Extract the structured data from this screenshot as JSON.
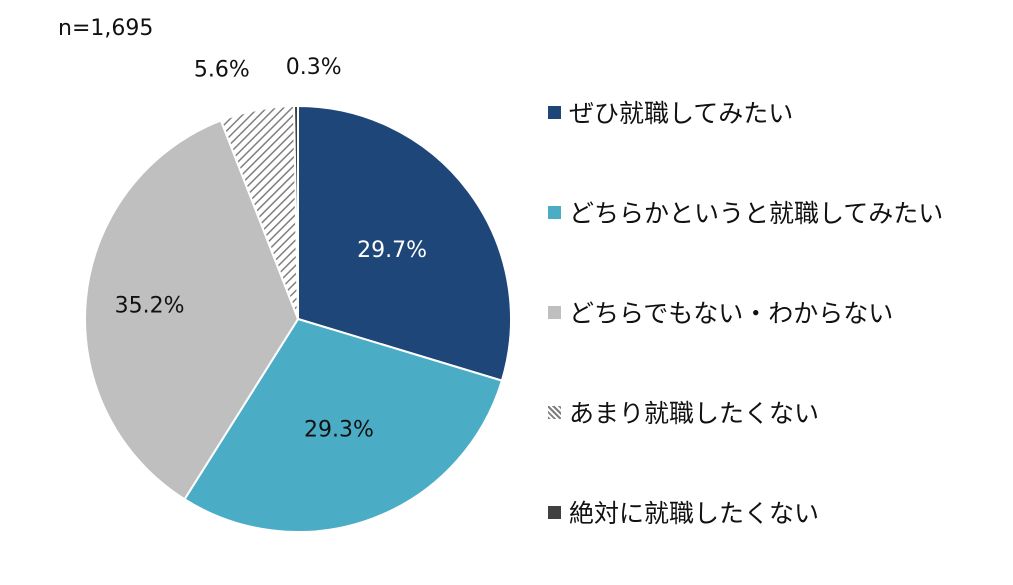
{
  "sample_size_label": "n=1,695",
  "chart_data": {
    "type": "pie",
    "title": "",
    "sample_size": "n=1,695",
    "legend_position": "right",
    "slices": [
      {
        "label": "ぜひ就職してみたい",
        "value": 29.7,
        "value_label": "29.7%",
        "color": "#1f4679",
        "pattern": "solid"
      },
      {
        "label": "どちらかというと就職してみたい",
        "value": 29.3,
        "value_label": "29.3%",
        "color": "#4bacc6",
        "pattern": "solid"
      },
      {
        "label": "どちらでもない・わからない",
        "value": 35.2,
        "value_label": "35.2%",
        "color": "#bfbfbf",
        "pattern": "solid"
      },
      {
        "label": "あまり就職したくない",
        "value": 5.6,
        "value_label": "5.6%",
        "color": "#7f7f7f",
        "pattern": "hatched"
      },
      {
        "label": "絶対に就職したくない",
        "value": 0.3,
        "value_label": "0.3%",
        "color": "#404040",
        "pattern": "solid"
      }
    ]
  }
}
